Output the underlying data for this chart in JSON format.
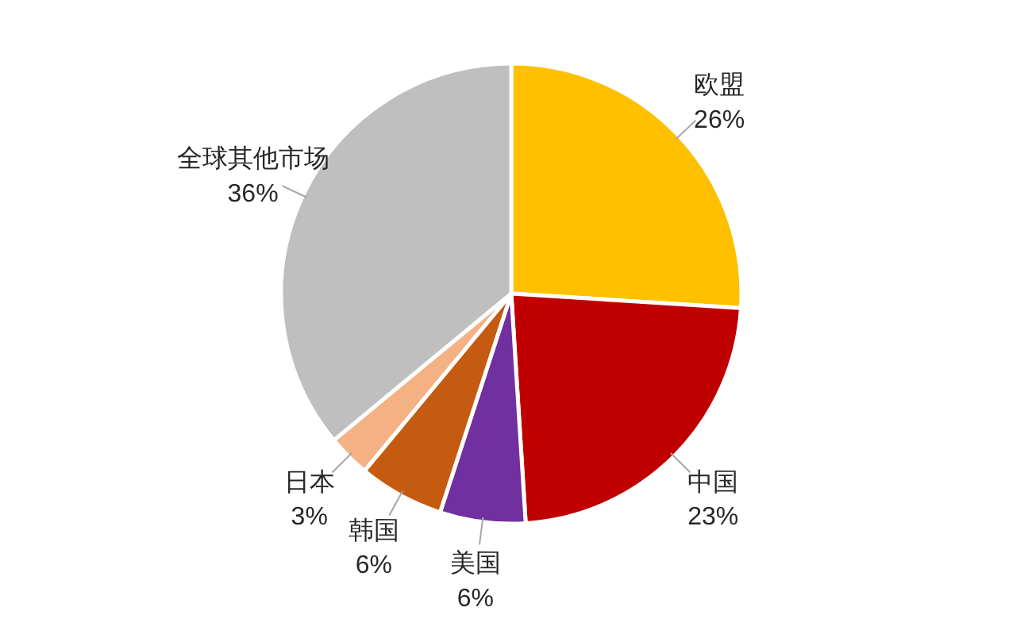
{
  "chart_data": {
    "type": "pie",
    "categories": [
      "欧盟",
      "中国",
      "美国",
      "韩国",
      "日本",
      "全球其他市场"
    ],
    "values": [
      26,
      23,
      6,
      6,
      3,
      36
    ],
    "value_labels": [
      "26%",
      "23%",
      "6%",
      "6%",
      "3%",
      "36%"
    ],
    "colors": [
      "#ffc000",
      "#c00000",
      "#7030a0",
      "#c55a11",
      "#f4b183",
      "#bfbfbf"
    ]
  }
}
